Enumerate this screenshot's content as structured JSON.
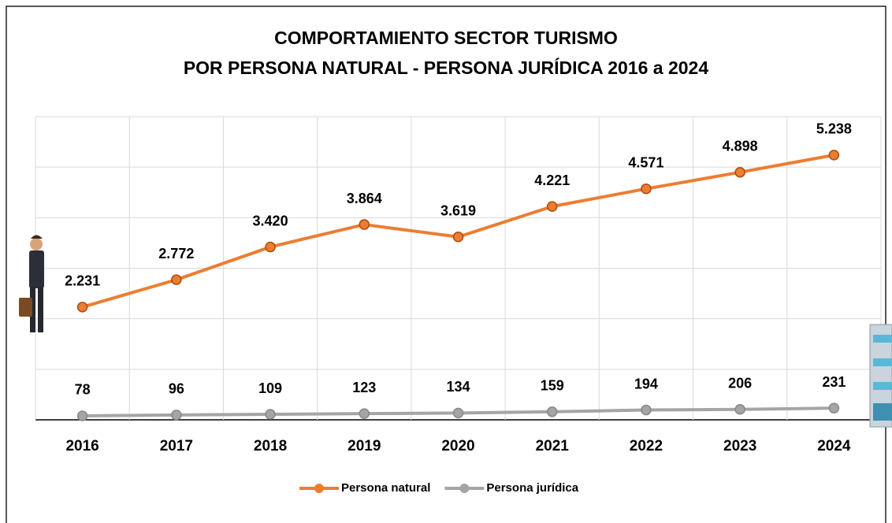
{
  "chart_data": {
    "type": "line",
    "title": [
      "COMPORTAMIENTO SECTOR TURISMO",
      "POR PERSONA NATURAL - PERSONA JURÍDICA 2016 a 2024"
    ],
    "categories": [
      "2016",
      "2017",
      "2018",
      "2019",
      "2020",
      "2021",
      "2022",
      "2023",
      "2024"
    ],
    "series": [
      {
        "name": "Persona natural",
        "color": "#ED7D31",
        "values": [
          2231,
          2772,
          3420,
          3864,
          3619,
          4221,
          4571,
          4898,
          5238
        ],
        "value_labels": [
          "2.231",
          "2.772",
          "3.420",
          "3.864",
          "3.619",
          "4.221",
          "4.571",
          "4.898",
          "5.238"
        ]
      },
      {
        "name": "Persona jurídica",
        "color": "#A5A5A5",
        "values": [
          78,
          96,
          109,
          123,
          134,
          159,
          194,
          206,
          231
        ]
      }
    ],
    "ylim": [
      0,
      6000
    ],
    "yticks": [
      0,
      1000,
      2000,
      3000,
      4000,
      5000,
      6000
    ],
    "grid": true
  }
}
